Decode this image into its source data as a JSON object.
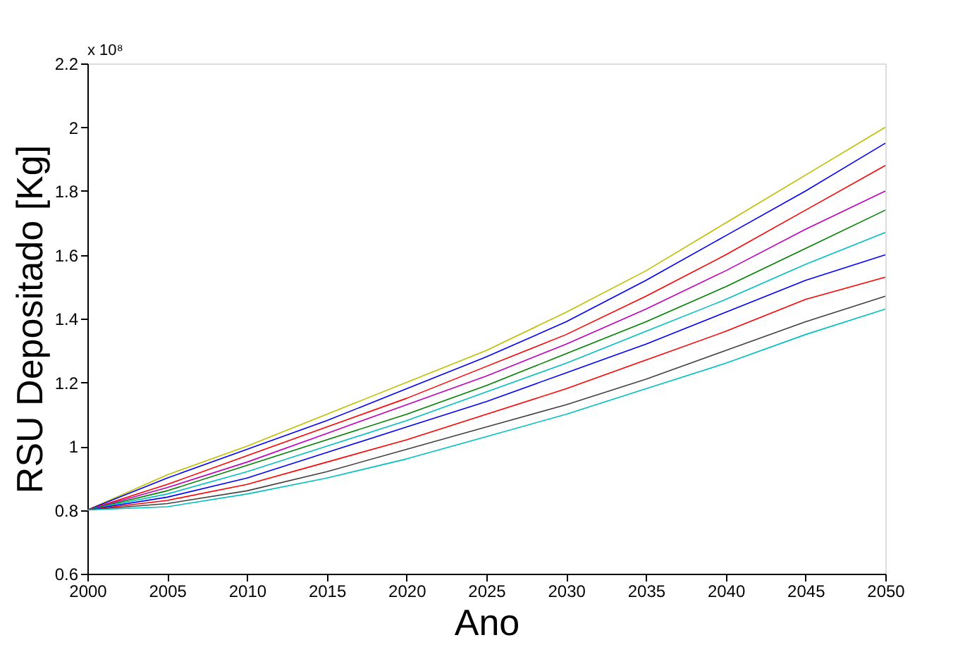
{
  "chart_data": {
    "type": "line",
    "xlabel": "Ano",
    "ylabel": "RSU Depositado [Kg]",
    "annotations": [
      "x 10⁸"
    ],
    "x": [
      2000,
      2005,
      2010,
      2015,
      2020,
      2025,
      2030,
      2035,
      2040,
      2045,
      2050
    ],
    "series": [
      {
        "color": "#bfbf00",
        "values": [
          0.8,
          0.91,
          1.0,
          1.1,
          1.2,
          1.3,
          1.42,
          1.55,
          1.7,
          1.85,
          2.0
        ]
      },
      {
        "color": "#0000ff",
        "values": [
          0.8,
          0.9,
          0.99,
          1.08,
          1.18,
          1.28,
          1.39,
          1.52,
          1.66,
          1.8,
          1.95
        ]
      },
      {
        "color": "#ff0000",
        "values": [
          0.8,
          0.88,
          0.97,
          1.06,
          1.15,
          1.25,
          1.35,
          1.47,
          1.6,
          1.74,
          1.88
        ]
      },
      {
        "color": "#bf00bf",
        "values": [
          0.8,
          0.87,
          0.95,
          1.04,
          1.13,
          1.22,
          1.32,
          1.43,
          1.55,
          1.68,
          1.8
        ]
      },
      {
        "color": "#008000",
        "values": [
          0.8,
          0.86,
          0.94,
          1.02,
          1.1,
          1.19,
          1.29,
          1.39,
          1.5,
          1.62,
          1.74
        ]
      },
      {
        "color": "#00bfbf",
        "values": [
          0.8,
          0.85,
          0.92,
          1.0,
          1.08,
          1.17,
          1.26,
          1.36,
          1.46,
          1.57,
          1.67
        ]
      },
      {
        "color": "#0000ff",
        "values": [
          0.8,
          0.84,
          0.9,
          0.98,
          1.06,
          1.14,
          1.23,
          1.32,
          1.42,
          1.52,
          1.6
        ]
      },
      {
        "color": "#ff0000",
        "values": [
          0.8,
          0.83,
          0.88,
          0.95,
          1.02,
          1.1,
          1.18,
          1.27,
          1.36,
          1.46,
          1.53
        ]
      },
      {
        "color": "#404040",
        "values": [
          0.8,
          0.82,
          0.86,
          0.92,
          0.99,
          1.06,
          1.13,
          1.21,
          1.3,
          1.39,
          1.47
        ]
      },
      {
        "color": "#00bfbf",
        "values": [
          0.8,
          0.81,
          0.85,
          0.9,
          0.96,
          1.03,
          1.1,
          1.18,
          1.26,
          1.35,
          1.43
        ]
      }
    ],
    "xlim": [
      2000,
      2050
    ],
    "xticks": [
      2000,
      2005,
      2010,
      2015,
      2020,
      2025,
      2030,
      2035,
      2040,
      2045,
      2050
    ],
    "ylim": [
      0.6,
      2.2
    ],
    "yticks": [
      0.6,
      0.8,
      1,
      1.2,
      1.4,
      1.6,
      1.8,
      2,
      2.2
    ],
    "grid": false,
    "legend": false,
    "marker": "none",
    "line_style": "solid"
  }
}
